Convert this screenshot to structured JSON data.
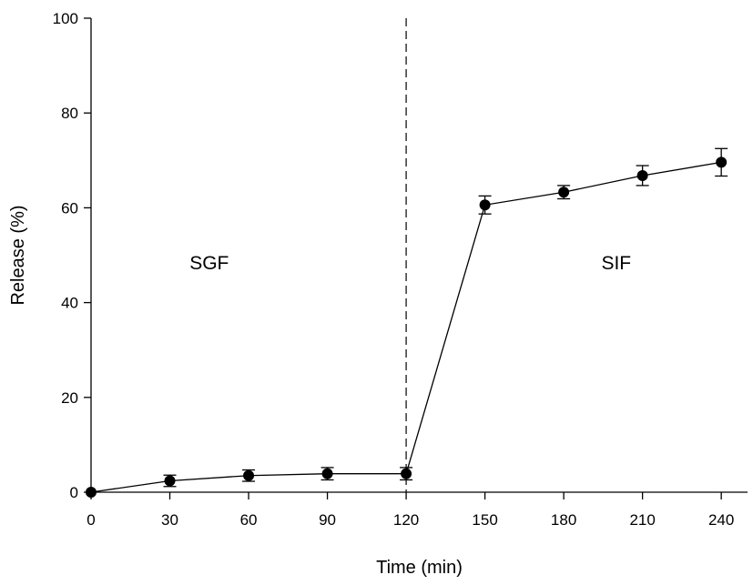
{
  "chart_data": {
    "type": "line",
    "title": "",
    "xlabel": "Time (min)",
    "ylabel": "Release (%)",
    "xlim": [
      0,
      250
    ],
    "ylim": [
      0,
      100
    ],
    "x_ticks": [
      0,
      30,
      60,
      90,
      120,
      150,
      180,
      210,
      240
    ],
    "y_ticks": [
      0,
      20,
      40,
      60,
      80,
      100
    ],
    "grid": false,
    "legend": "none",
    "series": [
      {
        "x": [
          0,
          30,
          60,
          90,
          120,
          150,
          180,
          210,
          240
        ],
        "values": [
          0,
          2.4,
          3.5,
          3.9,
          3.9,
          60.6,
          63.3,
          66.8,
          69.6
        ],
        "error": [
          0,
          1.2,
          1.2,
          1.3,
          1.3,
          1.9,
          1.4,
          2.1,
          2.9
        ],
        "color": "#000000",
        "marker": "filled-circle"
      }
    ],
    "annotations": [
      {
        "text": "SGF",
        "x": 45,
        "y": 47
      },
      {
        "text": "SIF",
        "x": 200,
        "y": 47
      }
    ],
    "reference_lines": [
      {
        "orientation": "vertical",
        "x": 120,
        "style": "dashed"
      }
    ]
  }
}
